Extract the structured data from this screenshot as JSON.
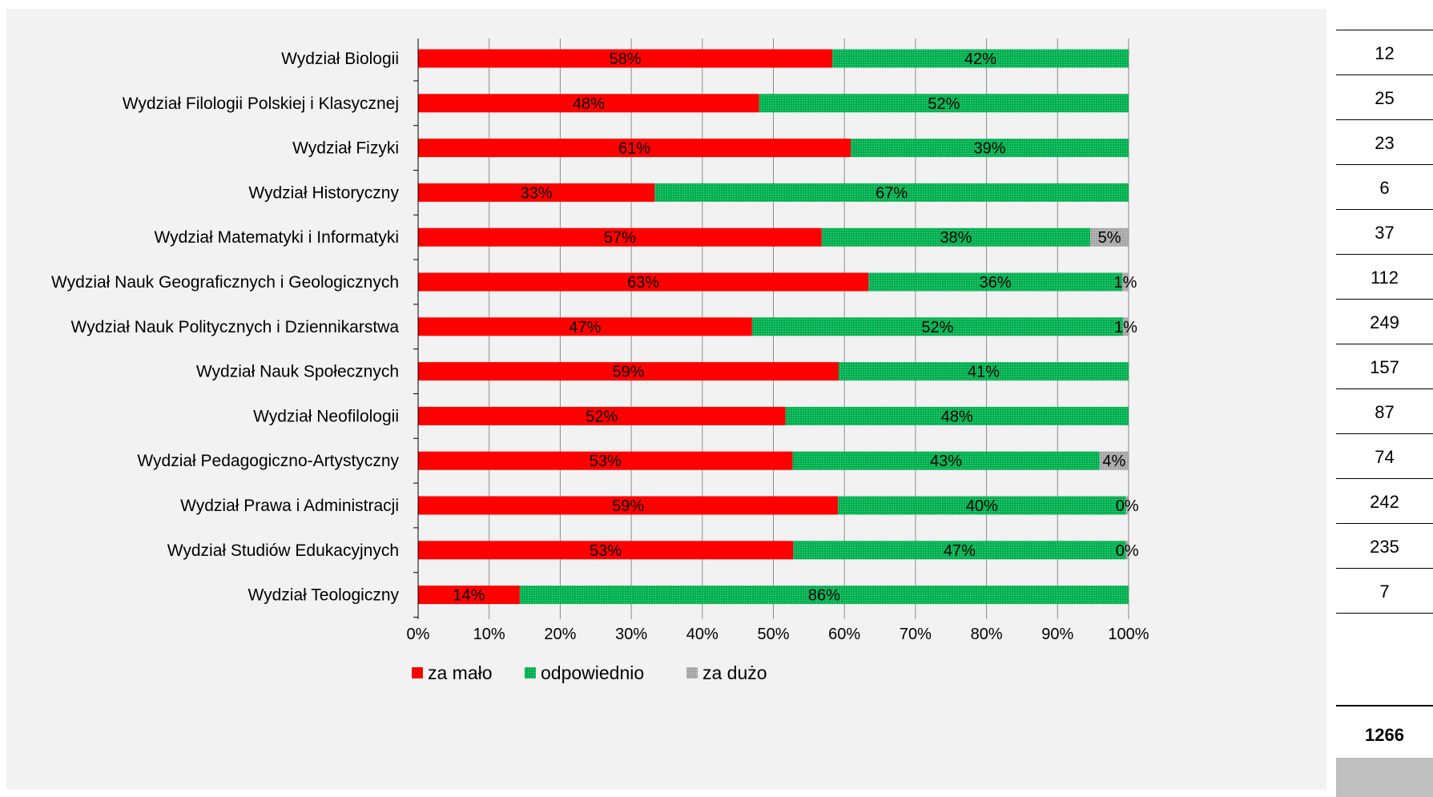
{
  "chart_data": {
    "type": "bar",
    "orientation": "horizontal",
    "stacked": "percent",
    "categories": [
      "Wydział Biologii",
      "Wydział Filologii Polskiej i Klasycznej",
      "Wydział Fizyki",
      "Wydział Historyczny",
      "Wydział Matematyki i Informatyki",
      "Wydział Nauk Geograficznych i Geologicznych",
      "Wydział Nauk Politycznych i Dziennikarstwa",
      "Wydział Nauk Społecznych",
      "Wydział Neofilologii",
      "Wydział Pedagogiczno-Artystyczny",
      "Wydział Prawa i Administracji",
      "Wydział Studiów Edukacyjnych",
      "Wydział Teologiczny"
    ],
    "series": [
      {
        "name": "za mało",
        "color": "#ff0000",
        "values": [
          58.3,
          48.0,
          60.9,
          33.3,
          56.8,
          63.4,
          47.0,
          59.2,
          51.7,
          52.7,
          59.1,
          52.8,
          14.3
        ],
        "labels": [
          "58%",
          "48%",
          "61%",
          "33%",
          "57%",
          "63%",
          "47%",
          "59%",
          "52%",
          "53%",
          "59%",
          "53%",
          "14%"
        ]
      },
      {
        "name": "odpowiednio",
        "color": "#00b050",
        "values": [
          41.7,
          52.0,
          39.1,
          66.7,
          37.8,
          35.7,
          52.2,
          40.8,
          48.3,
          43.2,
          40.5,
          46.8,
          85.7
        ],
        "labels": [
          "42%",
          "52%",
          "39%",
          "67%",
          "38%",
          "36%",
          "52%",
          "41%",
          "48%",
          "43%",
          "40%",
          "47%",
          "86%"
        ]
      },
      {
        "name": "za dużo",
        "color": "#a6a6a6",
        "values": [
          0,
          0,
          0,
          0,
          5.4,
          0.9,
          0.8,
          0,
          0,
          4.1,
          0.4,
          0.4,
          0
        ],
        "labels": [
          "",
          "",
          "",
          "",
          "5%",
          "1%",
          "1%",
          "",
          "",
          "4%",
          "0%",
          "0%",
          ""
        ]
      }
    ],
    "xlim": [
      0,
      100
    ],
    "x_ticks": [
      "0%",
      "10%",
      "20%",
      "30%",
      "40%",
      "50%",
      "60%",
      "70%",
      "80%",
      "90%",
      "100%"
    ],
    "grid": true,
    "legend_position": "bottom"
  },
  "counts": [
    "12",
    "25",
    "23",
    "6",
    "37",
    "112",
    "249",
    "157",
    "87",
    "74",
    "242",
    "235",
    "7"
  ],
  "total": "1266"
}
